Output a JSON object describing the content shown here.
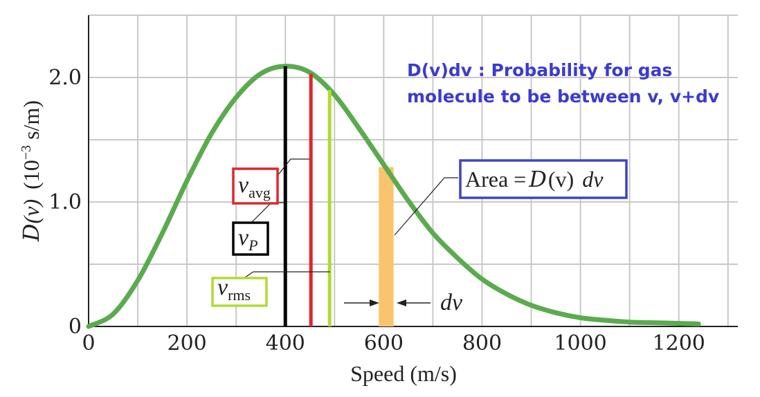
{
  "chart_data": {
    "type": "line",
    "xlabel": "Speed (m/s)",
    "ylabel_prefix": "D",
    "ylabel_var": "(v)",
    "ylabel_units": "(10",
    "ylabel_exp": "−3",
    "ylabel_units_tail": " s/m)",
    "xlim": [
      0,
      1320
    ],
    "ylim": [
      0,
      2.5
    ],
    "x_ticks": [
      0,
      200,
      400,
      600,
      800,
      1000,
      1200
    ],
    "x_tick_labels": [
      "0",
      "200",
      "400",
      "600",
      "800",
      "1000",
      "1200"
    ],
    "y_ticks": [
      0,
      1.0,
      2.0
    ],
    "y_tick_labels": [
      "0",
      "1.0",
      "2.0"
    ],
    "grid": true,
    "series": [
      {
        "color": "#5aab4e",
        "x": [
          0,
          50,
          100,
          150,
          200,
          250,
          300,
          350,
          400,
          450,
          500,
          550,
          600,
          650,
          700,
          750,
          800,
          850,
          900,
          950,
          1000,
          1050,
          1100,
          1150,
          1200,
          1240
        ],
        "y": [
          0.0,
          0.1,
          0.37,
          0.75,
          1.17,
          1.55,
          1.84,
          2.03,
          2.09,
          2.04,
          1.86,
          1.59,
          1.3,
          1.01,
          0.75,
          0.55,
          0.38,
          0.26,
          0.17,
          0.11,
          0.07,
          0.05,
          0.035,
          0.03,
          0.025,
          0.02
        ]
      }
    ],
    "markers": [
      {
        "name": "v_P",
        "x": 400,
        "y_top": 2.09,
        "color": "#000000"
      },
      {
        "name": "v_avg",
        "x": 452,
        "y_top": 2.03,
        "color": "#e0262b"
      },
      {
        "name": "v_rms",
        "x": 490,
        "y_top": 1.9,
        "color": "#b2d934"
      }
    ],
    "strip": {
      "x_start": 590,
      "x_end": 620,
      "height": 1.28,
      "color": "#f9c46b"
    },
    "annotation": {
      "line1": "D(v)dv : Probability for gas",
      "line2": "molecule to be between v, v+dv"
    },
    "labels": {
      "v_avg": "v",
      "v_avg_sub": "avg",
      "v_p": "v",
      "v_p_sub": "P",
      "v_rms": "v",
      "v_rms_sub": "rms",
      "dv": "dv",
      "area_prefix": "Area =",
      "area_D": "D",
      "area_v": "(v)",
      "area_dv": "dv"
    },
    "colors": {
      "curve": "#5aab4e",
      "v_avg_box": "#e0262b",
      "v_p_box": "#000000",
      "v_rms_box": "#b2d934",
      "area_box": "#3b46c2",
      "note": "#3b3bcf"
    }
  }
}
